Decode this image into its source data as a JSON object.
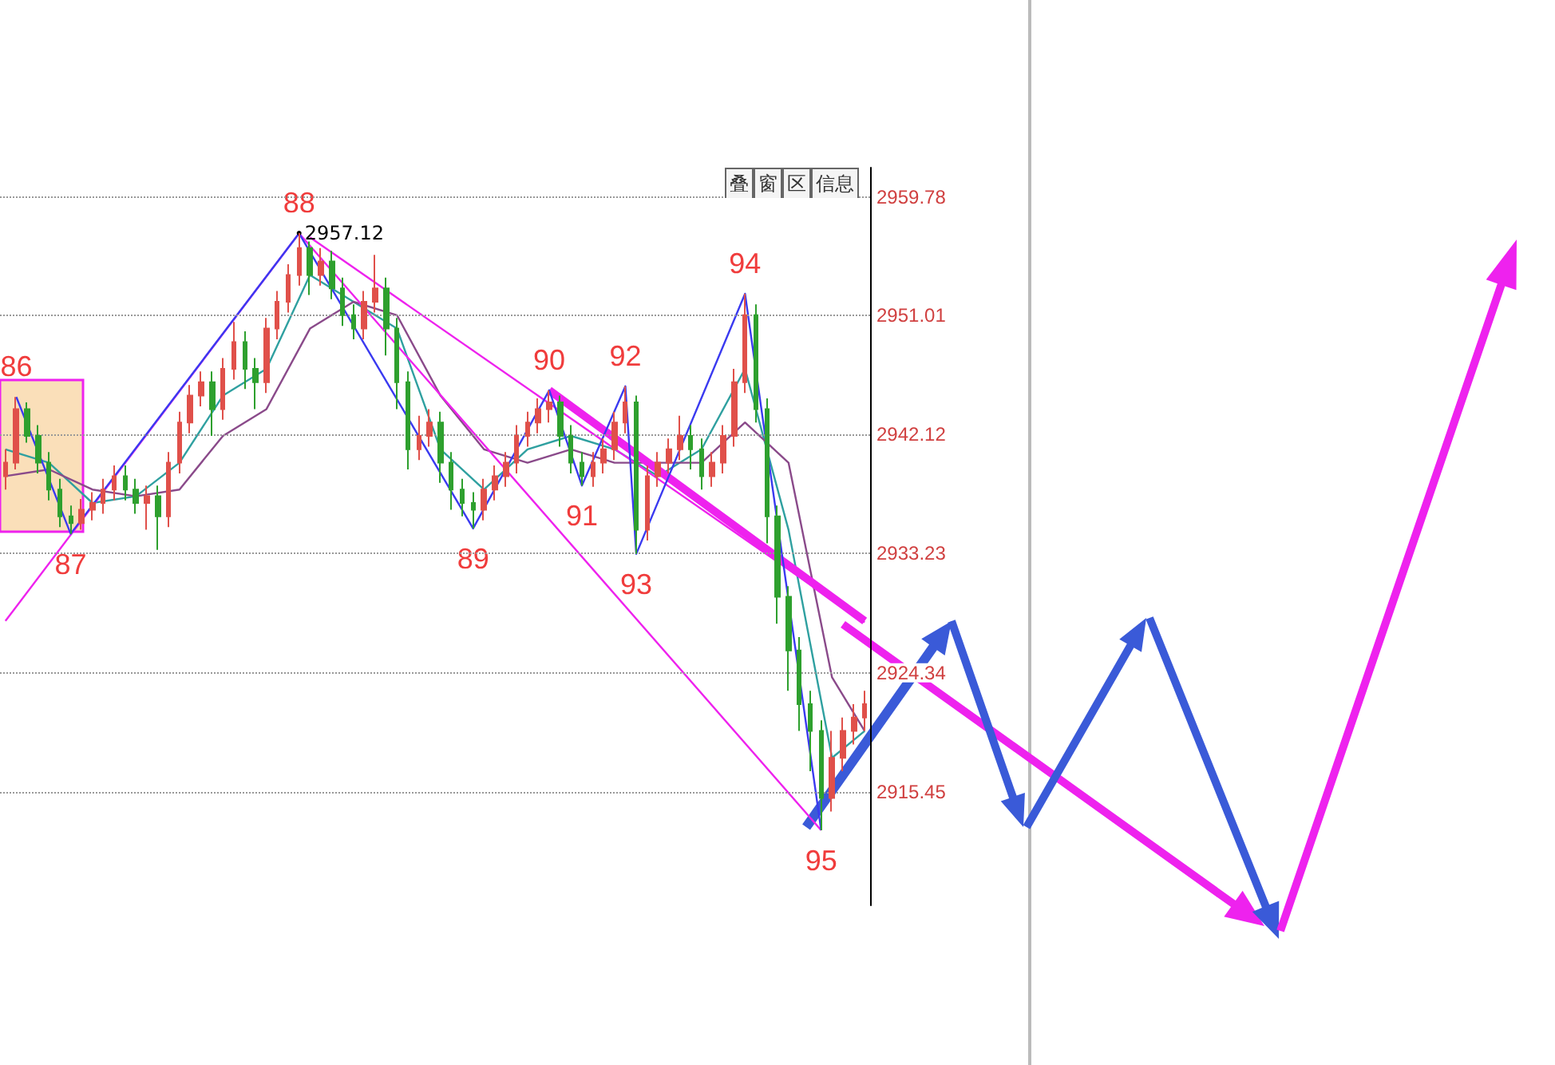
{
  "chart_data": {
    "type": "candlestick",
    "categories": [
      null,
      null,
      null,
      null,
      null,
      null,
      null,
      null,
      null,
      null,
      null,
      null,
      null,
      null,
      null,
      null,
      null,
      null,
      null,
      null,
      null,
      null,
      null,
      null,
      null,
      null,
      null,
      null,
      null,
      null,
      null,
      null,
      null,
      null,
      null,
      null,
      null,
      null,
      null,
      null,
      null,
      null,
      null,
      null,
      null,
      null,
      null,
      null,
      null,
      null,
      null,
      null,
      null,
      null,
      null,
      null,
      null,
      null,
      null,
      null,
      null,
      null,
      null,
      null,
      null,
      null,
      null,
      null,
      null,
      null,
      null,
      null,
      null,
      null,
      null,
      null,
      null,
      null,
      null,
      null
    ],
    "ohlc": [
      [
        2939,
        2941,
        2938,
        2940
      ],
      [
        2940,
        2944.9,
        2939.5,
        2944
      ],
      [
        2944,
        2944.5,
        2941.5,
        2942
      ],
      [
        2942,
        2942.8,
        2939.2,
        2940
      ],
      [
        2940,
        2940.8,
        2937.2,
        2938
      ],
      [
        2938,
        2938.8,
        2935.2,
        2936
      ],
      [
        2936,
        2936.8,
        2934.7,
        2935.5
      ],
      [
        2935.5,
        2937.3,
        2935,
        2936.5
      ],
      [
        2936.5,
        2937.8,
        2935.7,
        2937
      ],
      [
        2937,
        2938.8,
        2936.2,
        2938
      ],
      [
        2938,
        2939.8,
        2937.2,
        2939
      ],
      [
        2939,
        2939.8,
        2937.2,
        2938
      ],
      [
        2938,
        2938.8,
        2936.2,
        2937
      ],
      [
        2937,
        2938.3,
        2935,
        2937.5
      ],
      [
        2937.5,
        2938.3,
        2933.5,
        2936
      ],
      [
        2936,
        2940.8,
        2935.2,
        2940
      ],
      [
        2940,
        2943.8,
        2939.2,
        2943
      ],
      [
        2943,
        2945.8,
        2942.2,
        2945
      ],
      [
        2945,
        2946.8,
        2944.2,
        2946
      ],
      [
        2946,
        2946.8,
        2942,
        2944
      ],
      [
        2944,
        2947.8,
        2943.2,
        2947
      ],
      [
        2947,
        2950.5,
        2946.2,
        2949
      ],
      [
        2949,
        2949.8,
        2945.5,
        2947
      ],
      [
        2947,
        2947.8,
        2944,
        2946
      ],
      [
        2946,
        2950.8,
        2945.2,
        2950
      ],
      [
        2950,
        2952.8,
        2949.2,
        2952
      ],
      [
        2952,
        2954.8,
        2951.2,
        2954
      ],
      [
        2954,
        2957.12,
        2953.2,
        2956
      ],
      [
        2956,
        2956.5,
        2952.5,
        2954
      ],
      [
        2954,
        2956,
        2953.2,
        2955
      ],
      [
        2955,
        2955.8,
        2952.2,
        2953
      ],
      [
        2953,
        2953.8,
        2950.2,
        2951
      ],
      [
        2951,
        2951.8,
        2949.2,
        2950
      ],
      [
        2950,
        2952.8,
        2949.2,
        2952
      ],
      [
        2952,
        2955.5,
        2951.2,
        2953
      ],
      [
        2953,
        2953.8,
        2948,
        2950
      ],
      [
        2950,
        2950.8,
        2944,
        2946
      ],
      [
        2946,
        2946.8,
        2939.5,
        2941
      ],
      [
        2941,
        2943.5,
        2940.2,
        2942
      ],
      [
        2942,
        2944,
        2941.2,
        2943
      ],
      [
        2943,
        2943.8,
        2938.5,
        2940
      ],
      [
        2940,
        2940.8,
        2936.5,
        2938
      ],
      [
        2938,
        2938.8,
        2936,
        2937
      ],
      [
        2937,
        2937.8,
        2935.1,
        2936.5
      ],
      [
        2936.5,
        2938.8,
        2935.7,
        2938
      ],
      [
        2938,
        2939.8,
        2937.2,
        2939
      ],
      [
        2939,
        2940.8,
        2938.2,
        2940
      ],
      [
        2940,
        2942.8,
        2939.2,
        2942
      ],
      [
        2942,
        2943.8,
        2941.2,
        2943
      ],
      [
        2943,
        2944.8,
        2942.2,
        2944
      ],
      [
        2944,
        2945.4,
        2943,
        2944.5
      ],
      [
        2944.5,
        2945,
        2941.2,
        2942
      ],
      [
        2942,
        2942.8,
        2939.2,
        2940
      ],
      [
        2940,
        2940.8,
        2938.3,
        2939
      ],
      [
        2939,
        2940.8,
        2938.2,
        2940
      ],
      [
        2940,
        2941.8,
        2939.2,
        2941
      ],
      [
        2941,
        2943.8,
        2940.2,
        2943
      ],
      [
        2943,
        2945.7,
        2942.2,
        2944.5
      ],
      [
        2944.5,
        2945,
        2933.2,
        2935
      ],
      [
        2935,
        2939.8,
        2934.2,
        2939
      ],
      [
        2939,
        2940.8,
        2938.2,
        2940
      ],
      [
        2940,
        2941.8,
        2939.2,
        2941
      ],
      [
        2941,
        2943.5,
        2940.2,
        2942
      ],
      [
        2942,
        2942.8,
        2939.5,
        2941
      ],
      [
        2941,
        2941.8,
        2938,
        2939
      ],
      [
        2939,
        2940.8,
        2938.2,
        2940
      ],
      [
        2940,
        2942.8,
        2939.2,
        2942
      ],
      [
        2942,
        2947,
        2941.2,
        2946
      ],
      [
        2946,
        2952.6,
        2945.2,
        2951
      ],
      [
        2951,
        2951.8,
        2943,
        2944
      ],
      [
        2944,
        2944.8,
        2934,
        2936
      ],
      [
        2936,
        2936.8,
        2928,
        2930
      ],
      [
        2930,
        2930.8,
        2923,
        2926
      ],
      [
        2926,
        2927,
        2920,
        2922
      ],
      [
        2922,
        2923,
        2917,
        2920
      ],
      [
        2920,
        2920.8,
        2912.6,
        2915
      ],
      [
        2915,
        2920,
        2914,
        2918
      ],
      [
        2918,
        2921,
        2917,
        2920
      ],
      [
        2920,
        2922,
        2919,
        2921
      ],
      [
        2921,
        2923,
        2920,
        2922
      ]
    ],
    "colors": [
      "#e0504a",
      "#e0504a",
      "#2ea02e",
      "#2ea02e",
      "#2ea02e",
      "#2ea02e",
      "#2ea02e",
      "#e0504a",
      "#e0504a",
      "#e0504a",
      "#e0504a",
      "#2ea02e",
      "#2ea02e",
      "#e0504a",
      "#2ea02e",
      "#e0504a",
      "#e0504a",
      "#e0504a",
      "#e0504a",
      "#2ea02e",
      "#e0504a",
      "#e0504a",
      "#2ea02e",
      "#2ea02e",
      "#e0504a",
      "#e0504a",
      "#e0504a",
      "#e0504a",
      "#2ea02e",
      "#e0504a",
      "#2ea02e",
      "#2ea02e",
      "#2ea02e",
      "#e0504a",
      "#e0504a",
      "#2ea02e",
      "#2ea02e",
      "#2ea02e",
      "#e0504a",
      "#e0504a",
      "#2ea02e",
      "#2ea02e",
      "#2ea02e",
      "#2ea02e",
      "#e0504a",
      "#e0504a",
      "#e0504a",
      "#e0504a",
      "#e0504a",
      "#e0504a",
      "#e0504a",
      "#2ea02e",
      "#2ea02e",
      "#2ea02e",
      "#e0504a",
      "#e0504a",
      "#e0504a",
      "#e0504a",
      "#2ea02e",
      "#e0504a",
      "#e0504a",
      "#e0504a",
      "#e0504a",
      "#2ea02e",
      "#2ea02e",
      "#e0504a",
      "#e0504a",
      "#e0504a",
      "#e0504a",
      "#2ea02e",
      "#2ea02e",
      "#2ea02e",
      "#2ea02e",
      "#2ea02e",
      "#2ea02e",
      "#2ea02e",
      "#e0504a",
      "#e0504a",
      "#e0504a",
      "#e0504a"
    ],
    "series": [
      {
        "type": "line",
        "color": "#2fa0a0",
        "values": [
          2941,
          null,
          null,
          null,
          2940,
          null,
          null,
          null,
          2937,
          null,
          null,
          null,
          2937.5,
          null,
          null,
          null,
          2940,
          null,
          null,
          null,
          2945,
          null,
          null,
          null,
          2947,
          null,
          null,
          null,
          2954,
          null,
          null,
          null,
          2952,
          null,
          null,
          null,
          2950,
          null,
          null,
          null,
          2941,
          null,
          null,
          null,
          2938,
          null,
          null,
          null,
          2941,
          null,
          null,
          null,
          2942,
          null,
          null,
          null,
          2941,
          null,
          null,
          null,
          2939,
          null,
          null,
          null,
          2941,
          null,
          null,
          null,
          2947,
          null,
          null,
          null,
          2935,
          null,
          null,
          null,
          2918,
          null,
          null,
          2920
        ]
      },
      {
        "type": "line",
        "color": "#8a4a8a",
        "values": [
          2939,
          null,
          null,
          null,
          2939.5,
          null,
          null,
          null,
          2938,
          null,
          null,
          null,
          2937.5,
          null,
          null,
          null,
          2938,
          null,
          null,
          null,
          2942,
          null,
          null,
          null,
          2944,
          null,
          null,
          null,
          2950,
          null,
          null,
          null,
          2952,
          null,
          null,
          null,
          2951,
          null,
          null,
          null,
          2945,
          null,
          null,
          null,
          2941,
          null,
          null,
          null,
          2940,
          null,
          null,
          null,
          2941,
          null,
          null,
          null,
          2940,
          null,
          null,
          null,
          2940,
          null,
          null,
          null,
          2940,
          null,
          null,
          null,
          2943,
          null,
          null,
          null,
          2940,
          null,
          null,
          null,
          2924,
          null,
          null,
          2920
        ]
      },
      {
        "type": "line",
        "color": "#ee22ee",
        "values": [
          2928.2,
          null,
          null,
          null,
          null,
          null,
          null,
          null,
          null,
          null,
          null,
          null,
          null,
          null,
          null,
          null,
          null,
          null,
          null,
          null,
          null,
          null,
          null,
          null,
          null,
          null,
          null,
          2957.1,
          null,
          null,
          null,
          null,
          null,
          null,
          null,
          null,
          null,
          null,
          null,
          null,
          null,
          null,
          null,
          null,
          null,
          null,
          null,
          null,
          null,
          null,
          null,
          null,
          null,
          null,
          null,
          null,
          null,
          null,
          null,
          null,
          null,
          null,
          null,
          null,
          null,
          null,
          null,
          null,
          null,
          null,
          null,
          null,
          null,
          null,
          null,
          2912.6,
          null,
          null,
          null,
          null
        ]
      },
      {
        "type": "line",
        "color": "#ee22ee",
        "values": [
          null,
          null,
          null,
          null,
          null,
          null,
          null,
          null,
          null,
          null,
          null,
          null,
          null,
          null,
          null,
          null,
          null,
          null,
          null,
          null,
          null,
          null,
          null,
          null,
          null,
          null,
          null,
          null,
          2956.8,
          null,
          null,
          null,
          null,
          null,
          null,
          null,
          null,
          null,
          null,
          null,
          null,
          null,
          null,
          null,
          null,
          null,
          null,
          null,
          null,
          null,
          null,
          null,
          null,
          null,
          null,
          null,
          null,
          null,
          null,
          null,
          null,
          null,
          null,
          null,
          null,
          null,
          null,
          null,
          null,
          null,
          null,
          null,
          null,
          null,
          null,
          null,
          null,
          null,
          null,
          2928.1
        ]
      },
      {
        "type": "line",
        "color": "#ee22ee",
        "values": [
          null,
          null,
          null,
          null,
          null,
          null,
          null,
          null,
          null,
          null,
          null,
          null,
          null,
          null,
          null,
          null,
          null,
          null,
          null,
          null,
          null,
          null,
          null,
          null,
          null,
          null,
          null,
          null,
          null,
          null,
          null,
          null,
          null,
          null,
          null,
          null,
          null,
          null,
          null,
          null,
          null,
          null,
          null,
          null,
          null,
          null,
          null,
          null,
          null,
          null,
          2945.4,
          null,
          null,
          null,
          null,
          null,
          null,
          null,
          null,
          null,
          null,
          null,
          null,
          null,
          null,
          null,
          null,
          null,
          null,
          null,
          null,
          null,
          null,
          null,
          null,
          null,
          null,
          null,
          null,
          2928.2
        ]
      },
      {
        "type": "line",
        "color": "#3a3af0",
        "values": [
          null,
          2944.9,
          null,
          null,
          null,
          null,
          2934.7,
          null,
          null,
          null,
          null,
          null,
          null,
          null,
          null,
          null,
          null,
          null,
          null,
          null,
          null,
          null,
          null,
          null,
          null,
          null,
          null,
          2957.1,
          null,
          null,
          null,
          null,
          null,
          null,
          null,
          null,
          null,
          null,
          null,
          null,
          null,
          null,
          null,
          2935.1,
          null,
          null,
          null,
          null,
          null,
          null,
          2945.4,
          null,
          null,
          2938.3,
          null,
          null,
          null,
          2945.7,
          2933.2,
          null,
          null,
          null,
          null,
          null,
          null,
          null,
          null,
          null,
          2952.6,
          null,
          null,
          null,
          null,
          null,
          null,
          2912.6,
          null,
          null,
          null,
          null
        ]
      }
    ],
    "ylim": [
      2907,
      2962
    ],
    "yticks": [
      2959.78,
      2951.01,
      2942.12,
      2933.23,
      2924.34,
      2915.45
    ],
    "tick_labels": "y",
    "grid": "y",
    "annotations": [
      "2957.12",
      "86",
      "87",
      "88",
      "89",
      "90",
      "91",
      "92",
      "93",
      "94",
      "95",
      "叠",
      "窗",
      "区",
      "信息"
    ]
  }
}
